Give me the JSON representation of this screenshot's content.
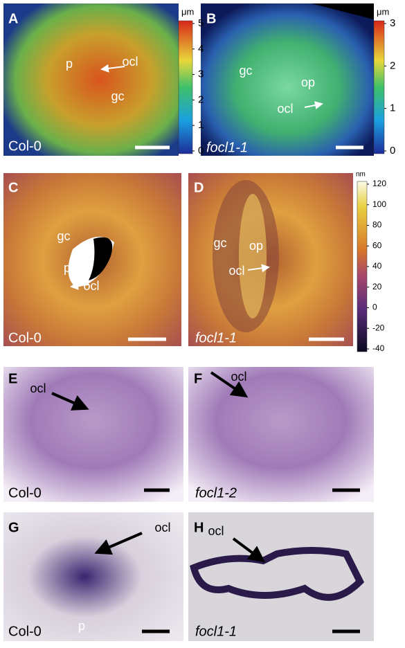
{
  "panels": [
    {
      "letter": "A",
      "genotype": "Col-0",
      "labels": [
        "p",
        "ocl",
        "gc"
      ]
    },
    {
      "letter": "B",
      "genotype": "focl1-1",
      "labels": [
        "gc",
        "op",
        "ocl"
      ]
    },
    {
      "letter": "C",
      "genotype": "Col-0",
      "labels": [
        "gc",
        "p",
        "ocl"
      ]
    },
    {
      "letter": "D",
      "genotype": "focl1-1",
      "labels": [
        "gc",
        "op",
        "ocl"
      ]
    },
    {
      "letter": "E",
      "genotype": "Col-0",
      "labels": [
        "ocl"
      ]
    },
    {
      "letter": "F",
      "genotype": "focl1-2",
      "labels": [
        "ocl"
      ]
    },
    {
      "letter": "G",
      "genotype": "Col-0",
      "labels": [
        "ocl",
        "p"
      ]
    },
    {
      "letter": "H",
      "genotype": "focl1-1",
      "labels": [
        "ocl"
      ]
    }
  ],
  "colorbars": [
    {
      "unit": "μm",
      "ticks": [
        5,
        4,
        3,
        2,
        1,
        0
      ]
    },
    {
      "unit": "μm",
      "ticks": [
        3,
        2,
        1,
        0
      ]
    },
    {
      "unit": "nm",
      "ticks": [
        120,
        100,
        80,
        60,
        40,
        20,
        0,
        -20,
        -40
      ]
    }
  ]
}
